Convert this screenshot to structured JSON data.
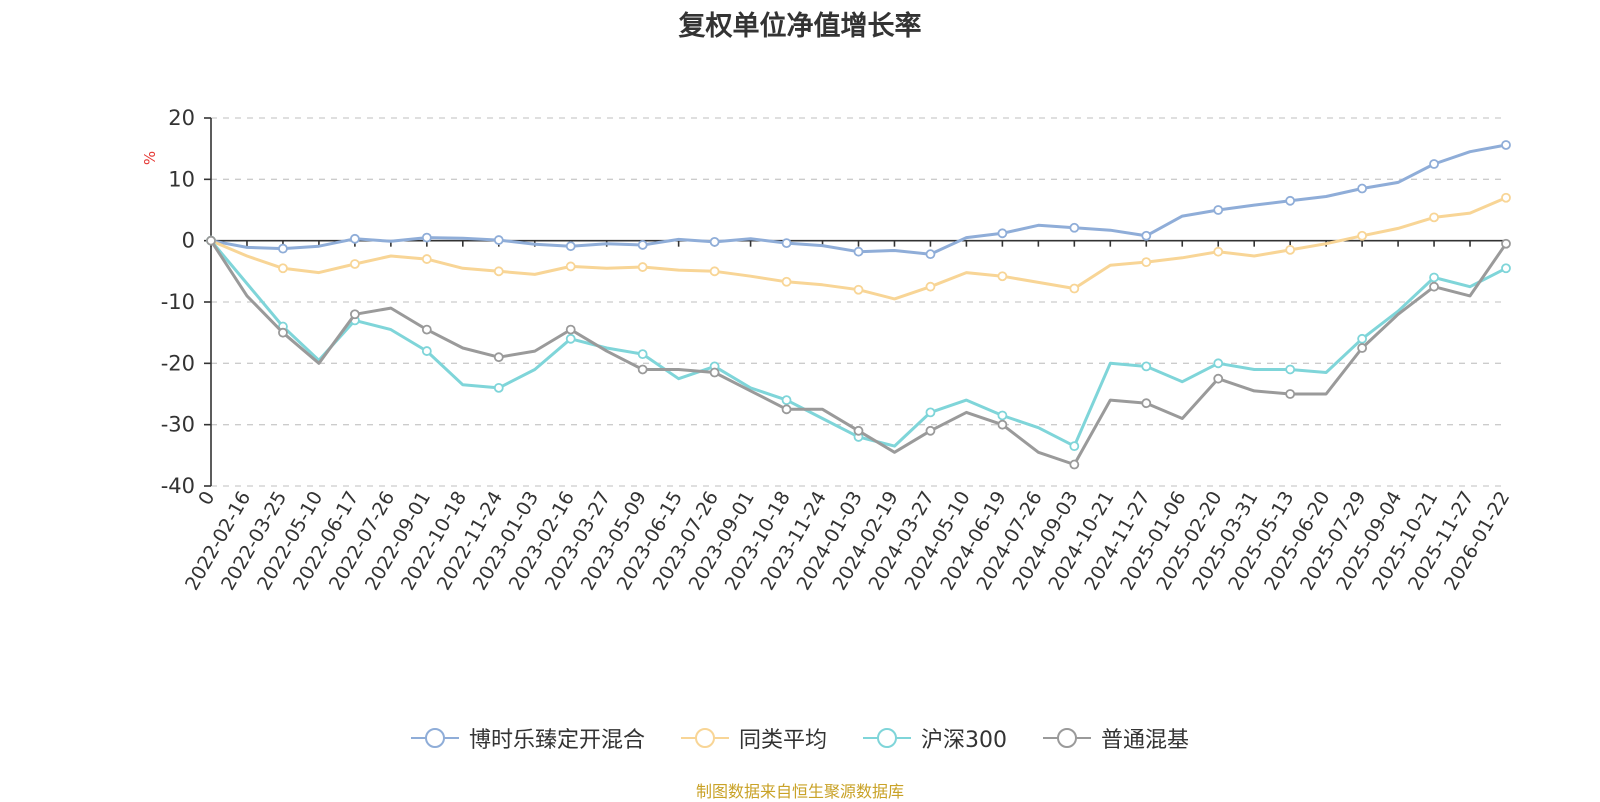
{
  "chart_data": {
    "type": "line",
    "title": "复权单位净值增长率",
    "ylabel": "%",
    "ylim": [
      -40,
      20
    ],
    "yticks": [
      20,
      10,
      0,
      -10,
      -20,
      -30,
      -40
    ],
    "x_ticks": [
      "0",
      "2022-02-16",
      "2022-03-25",
      "2022-05-10",
      "2022-06-17",
      "2022-07-26",
      "2022-09-01",
      "2022-10-18",
      "2022-11-24",
      "2023-01-03",
      "2023-02-16",
      "2023-03-27",
      "2023-05-09",
      "2023-06-15",
      "2023-07-26",
      "2023-09-01",
      "2023-10-18",
      "2023-11-24",
      "2024-01-03",
      "2024-02-19",
      "2024-03-27",
      "2024-05-10",
      "2024-06-19",
      "2024-07-26",
      "2024-09-03",
      "2024-10-21",
      "2024-11-27",
      "2025-01-06",
      "2025-02-20",
      "2025-03-31",
      "2025-05-13",
      "2025-06-20",
      "2025-07-29",
      "2025-09-04",
      "2025-10-21",
      "2025-11-27",
      "2026-01-22"
    ],
    "series": [
      {
        "name": "博时乐臻定开混合",
        "color": "#8fadd8",
        "values": [
          0,
          -1.1,
          -1.3,
          -0.9,
          0.3,
          -0.1,
          0.5,
          0.4,
          0.1,
          -0.6,
          -0.9,
          -0.5,
          -0.7,
          0.2,
          -0.2,
          0.3,
          -0.4,
          -0.8,
          -1.8,
          -1.6,
          -2.2,
          0.5,
          1.2,
          2.5,
          2.1,
          1.7,
          0.8,
          4.0,
          5.0,
          5.8,
          6.5,
          7.2,
          8.5,
          9.5,
          12.5,
          14.5,
          15.6
        ]
      },
      {
        "name": "同类平均",
        "color": "#f8d596",
        "values": [
          0,
          -2.5,
          -4.5,
          -5.2,
          -3.8,
          -2.5,
          -3.0,
          -4.5,
          -5.0,
          -5.5,
          -4.2,
          -4.5,
          -4.3,
          -4.8,
          -5.0,
          -5.8,
          -6.7,
          -7.2,
          -8.0,
          -9.5,
          -7.5,
          -5.2,
          -5.8,
          -6.8,
          -7.8,
          -4.0,
          -3.5,
          -2.8,
          -1.8,
          -2.5,
          -1.5,
          -0.5,
          0.8,
          2.0,
          3.8,
          4.5,
          7.0
        ]
      },
      {
        "name": "沪深300",
        "color": "#7fd5d9",
        "values": [
          0,
          -7.0,
          -14.0,
          -19.5,
          -13.0,
          -14.5,
          -18.0,
          -23.5,
          -24.0,
          -21.0,
          -16.0,
          -17.5,
          -18.5,
          -22.5,
          -20.5,
          -24.0,
          -26.0,
          -29.0,
          -32.0,
          -33.5,
          -28.0,
          -26.0,
          -28.5,
          -30.5,
          -33.5,
          -20.0,
          -20.5,
          -23.0,
          -20.0,
          -21.0,
          -21.0,
          -21.5,
          -16.0,
          -11.5,
          -6.0,
          -7.5,
          -4.5
        ]
      },
      {
        "name": "普通混基",
        "color": "#9a9a9a",
        "values": [
          0,
          -9.0,
          -15.0,
          -20.0,
          -12.0,
          -11.0,
          -14.5,
          -17.5,
          -19.0,
          -18.0,
          -14.5,
          -18.0,
          -21.0,
          -21.0,
          -21.5,
          -24.5,
          -27.5,
          -27.5,
          -31.0,
          -34.5,
          -31.0,
          -28.0,
          -30.0,
          -34.5,
          -36.5,
          -26.0,
          -26.5,
          -29.0,
          -22.5,
          -24.5,
          -25.0,
          -25.0,
          -17.5,
          -12.0,
          -7.5,
          -9.0,
          -0.5
        ]
      }
    ]
  },
  "source": {
    "text": "制图数据来自恒生聚源数据库",
    "color": "#c9a227"
  }
}
